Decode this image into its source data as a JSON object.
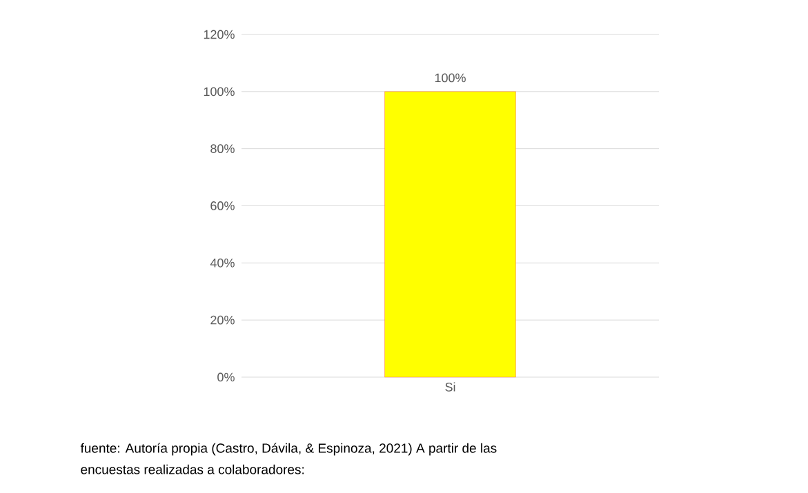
{
  "chart_data": {
    "type": "bar",
    "categories": [
      "Si"
    ],
    "values": [
      100
    ],
    "color": "#ffff00",
    "value_labels": [
      "100%"
    ],
    "ylim": [
      0,
      120
    ],
    "yticks": [
      {
        "value": 0,
        "label": "0%"
      },
      {
        "value": 20,
        "label": "20%"
      },
      {
        "value": 40,
        "label": "40%"
      },
      {
        "value": 60,
        "label": "60%"
      },
      {
        "value": 80,
        "label": "80%"
      },
      {
        "value": 100,
        "label": "100%"
      },
      {
        "value": 120,
        "label": "120%"
      }
    ],
    "grid": "y",
    "annotations": [
      "fuente: Autoría propia (Castro, Dávila, & Espinoza, 2021) A partir de las encuestas realizadas a colaboradores:"
    ]
  }
}
